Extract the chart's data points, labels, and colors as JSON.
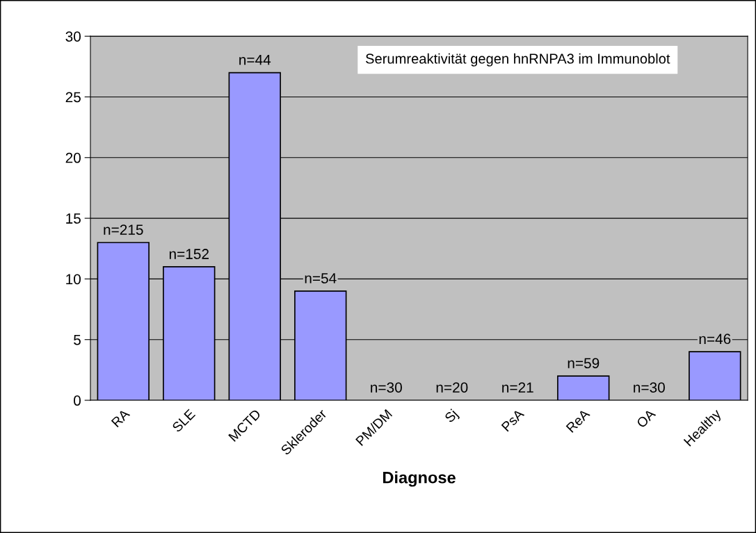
{
  "chart_data": {
    "type": "bar",
    "title": "Serumreaktivität gegen hnRNPA3 im Immunoblot",
    "xlabel": "Diagnose",
    "categories": [
      "RA",
      "SLE",
      "MCTD",
      "Skleroder",
      "PM/DM",
      "Sj",
      "PsA",
      "ReA",
      "OA",
      "Healthy"
    ],
    "values": [
      13,
      11,
      27,
      9,
      0,
      0,
      0,
      2,
      0,
      4
    ],
    "annotations": [
      {
        "text": "n=215",
        "x": "RA",
        "y": 13
      },
      {
        "text": "n=152",
        "x": "SLE",
        "y": 11
      },
      {
        "text": "n=44",
        "x": "MCTD",
        "y": 27
      },
      {
        "text": "n=54",
        "x": "Skleroder",
        "y": 9
      },
      {
        "text": "n=30",
        "x": "PM/DM",
        "y": 0
      },
      {
        "text": "n=20",
        "x": "Sj",
        "y": 0
      },
      {
        "text": "n=21",
        "x": "PsA",
        "y": 0
      },
      {
        "text": "n=59",
        "x": "ReA",
        "y": 2
      },
      {
        "text": "n=30",
        "x": "OA",
        "y": 0
      },
      {
        "text": "n=46",
        "x": "Healthy",
        "y": 4
      }
    ],
    "color": "#9999ff",
    "ylim": [
      0,
      30
    ],
    "yticks": [
      0,
      5,
      10,
      15,
      20,
      25,
      30
    ],
    "grid": "y",
    "legend": false
  }
}
